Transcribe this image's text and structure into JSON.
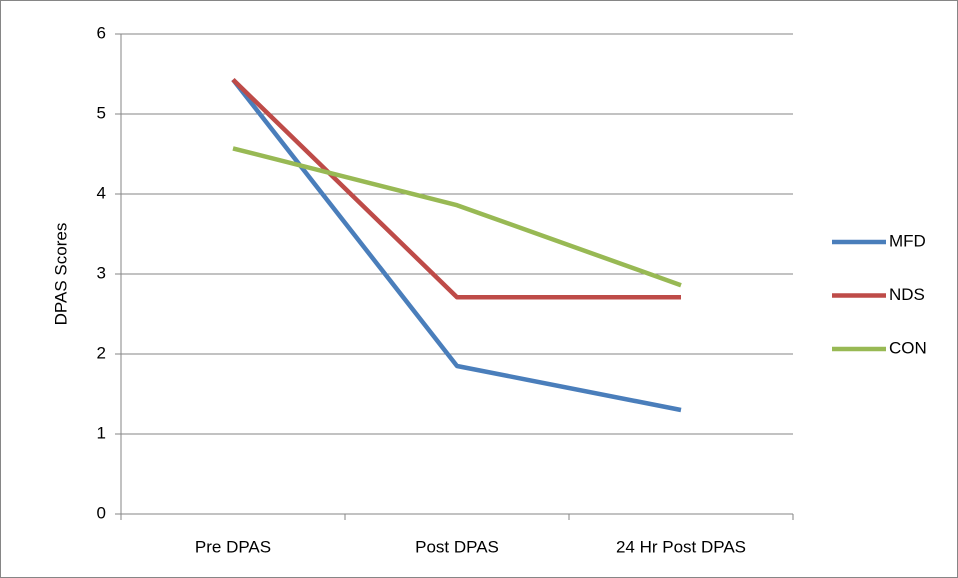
{
  "chart_data": {
    "type": "line",
    "y_label": "DPAS Scores",
    "categories": [
      "Pre DPAS",
      "Post DPAS",
      "24 Hr Post DPAS"
    ],
    "series": [
      {
        "name": "MFD",
        "color": "#4a7ebb",
        "values": [
          5.43,
          1.85,
          1.3
        ]
      },
      {
        "name": "NDS",
        "color": "#be4b48",
        "values": [
          5.43,
          2.71,
          2.71
        ]
      },
      {
        "name": "CON",
        "color": "#98b954",
        "values": [
          4.57,
          3.86,
          2.86
        ]
      }
    ],
    "ylim": [
      0,
      6
    ],
    "yticks": [
      0,
      1,
      2,
      3,
      4,
      5,
      6
    ],
    "grid": true,
    "legend": "right"
  }
}
